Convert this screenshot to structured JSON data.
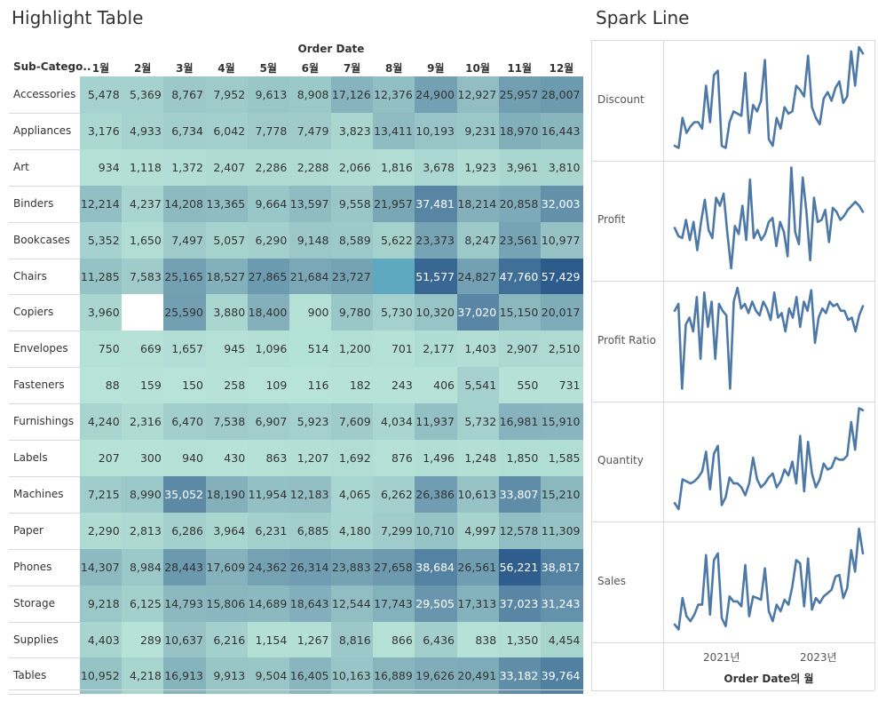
{
  "highlight": {
    "title": "Highlight Table",
    "column_group_label": "Order Date",
    "row_header": "Sub-Catego..",
    "months": [
      "1월",
      "2월",
      "3월",
      "4월",
      "5월",
      "6월",
      "7월",
      "8월",
      "9월",
      "10월",
      "11월",
      "12월"
    ],
    "colors": {
      "low": "#b8e4d8",
      "high": "#2c5b8c",
      "white_text_threshold": 29000
    }
  },
  "sparkline": {
    "title": "Spark Line",
    "measures": [
      "Discount",
      "Profit",
      "Profit Ratio",
      "Quantity",
      "Sales"
    ],
    "x_ticks": [
      "2021년",
      "2023년"
    ],
    "x_axis_title": "Order Date의 월",
    "line_color": "#4e79a7"
  },
  "chart_data": [
    {
      "type": "heatmap",
      "title": "Highlight Table",
      "xlabel": "Order Date",
      "ylabel": "Sub-Catego..",
      "columns": [
        "1월",
        "2월",
        "3월",
        "4월",
        "5월",
        "6월",
        "7월",
        "8월",
        "9월",
        "10월",
        "11월",
        "12월"
      ],
      "rows": [
        {
          "name": "Accessories",
          "values": [
            5478,
            5369,
            8767,
            7952,
            9613,
            8908,
            17126,
            12376,
            24900,
            12927,
            25957,
            28007
          ],
          "labels": [
            "5,478",
            "5,369",
            "8,767",
            "7,952",
            "9,613",
            "8,908",
            "17,126",
            "12,376",
            "24,900",
            "12,927",
            "25,957",
            "28,007"
          ]
        },
        {
          "name": "Appliances",
          "values": [
            3176,
            4933,
            6734,
            6042,
            7778,
            7479,
            3823,
            13411,
            10193,
            9231,
            18970,
            16443
          ],
          "labels": [
            "3,176",
            "4,933",
            "6,734",
            "6,042",
            "7,778",
            "7,479",
            "3,823",
            "13,411",
            "10,193",
            "9,231",
            "18,970",
            "16,443"
          ]
        },
        {
          "name": "Art",
          "values": [
            934,
            1118,
            1372,
            2407,
            2286,
            2288,
            2066,
            1816,
            3678,
            1923,
            3961,
            3810
          ],
          "labels": [
            "934",
            "1,118",
            "1,372",
            "2,407",
            "2,286",
            "2,288",
            "2,066",
            "1,816",
            "3,678",
            "1,923",
            "3,961",
            "3,810"
          ]
        },
        {
          "name": "Binders",
          "values": [
            12214,
            4237,
            14208,
            13365,
            9664,
            13597,
            9558,
            21957,
            37481,
            18214,
            20858,
            32003
          ],
          "labels": [
            "12,214",
            "4,237",
            "14,208",
            "13,365",
            "9,664",
            "13,597",
            "9,558",
            "21,957",
            "37,481",
            "18,214",
            "20,858",
            "32,003"
          ]
        },
        {
          "name": "Bookcases",
          "values": [
            5352,
            1650,
            7497,
            5057,
            6290,
            9148,
            8589,
            5622,
            23373,
            8247,
            23561,
            10977
          ],
          "labels": [
            "5,352",
            "1,650",
            "7,497",
            "5,057",
            "6,290",
            "9,148",
            "8,589",
            "5,622",
            "23,373",
            "8,247",
            "23,561",
            "10,977"
          ]
        },
        {
          "name": "Chairs",
          "values": [
            11285,
            7583,
            25165,
            18527,
            27865,
            21684,
            23727,
            null,
            51577,
            24827,
            47760,
            57429
          ],
          "labels": [
            "11,285",
            "7,583",
            "25,165",
            "18,527",
            "27,865",
            "21,684",
            "23,727",
            "",
            "51,577",
            "24,827",
            "47,760",
            "57,429"
          ],
          "fill_blank": [
            7
          ]
        },
        {
          "name": "Copiers",
          "values": [
            3960,
            null,
            25590,
            3880,
            18400,
            900,
            9780,
            5730,
            10320,
            37020,
            15150,
            20017
          ],
          "labels": [
            "3,960",
            "",
            "25,590",
            "3,880",
            "18,400",
            "900",
            "9,780",
            "5,730",
            "10,320",
            "37,020",
            "15,150",
            "20,017"
          ]
        },
        {
          "name": "Envelopes",
          "values": [
            750,
            669,
            1657,
            945,
            1096,
            514,
            1200,
            701,
            2177,
            1403,
            2907,
            2510
          ],
          "labels": [
            "750",
            "669",
            "1,657",
            "945",
            "1,096",
            "514",
            "1,200",
            "701",
            "2,177",
            "1,403",
            "2,907",
            "2,510"
          ]
        },
        {
          "name": "Fasteners",
          "values": [
            88,
            159,
            150,
            258,
            109,
            116,
            182,
            243,
            406,
            5541,
            550,
            731
          ],
          "labels": [
            "88",
            "159",
            "150",
            "258",
            "109",
            "116",
            "182",
            "243",
            "406",
            "5,541",
            "550",
            "731"
          ]
        },
        {
          "name": "Furnishings",
          "values": [
            4240,
            2316,
            6470,
            7538,
            6907,
            5923,
            7609,
            4034,
            11937,
            5732,
            16981,
            15910
          ],
          "labels": [
            "4,240",
            "2,316",
            "6,470",
            "7,538",
            "6,907",
            "5,923",
            "7,609",
            "4,034",
            "11,937",
            "5,732",
            "16,981",
            "15,910"
          ]
        },
        {
          "name": "Labels",
          "values": [
            207,
            300,
            940,
            430,
            863,
            1207,
            1692,
            876,
            1496,
            1248,
            1850,
            1585
          ],
          "labels": [
            "207",
            "300",
            "940",
            "430",
            "863",
            "1,207",
            "1,692",
            "876",
            "1,496",
            "1,248",
            "1,850",
            "1,585"
          ]
        },
        {
          "name": "Machines",
          "values": [
            7215,
            8990,
            35052,
            18190,
            11954,
            12183,
            4065,
            6262,
            26386,
            10613,
            33807,
            15210
          ],
          "labels": [
            "7,215",
            "8,990",
            "35,052",
            "18,190",
            "11,954",
            "12,183",
            "4,065",
            "6,262",
            "26,386",
            "10,613",
            "33,807",
            "15,210"
          ]
        },
        {
          "name": "Paper",
          "values": [
            2290,
            2813,
            6286,
            3964,
            6231,
            6885,
            4180,
            7299,
            10710,
            4997,
            12578,
            11309
          ],
          "labels": [
            "2,290",
            "2,813",
            "6,286",
            "3,964",
            "6,231",
            "6,885",
            "4,180",
            "7,299",
            "10,710",
            "4,997",
            "12,578",
            "11,309"
          ]
        },
        {
          "name": "Phones",
          "values": [
            14307,
            8984,
            28443,
            17609,
            24362,
            26314,
            23883,
            27658,
            38684,
            26561,
            56221,
            38817
          ],
          "labels": [
            "14,307",
            "8,984",
            "28,443",
            "17,609",
            "24,362",
            "26,314",
            "23,883",
            "27,658",
            "38,684",
            "26,561",
            "56,221",
            "38,817"
          ]
        },
        {
          "name": "Storage",
          "values": [
            9218,
            6125,
            14793,
            15806,
            14689,
            18643,
            12544,
            17743,
            29505,
            17313,
            37023,
            31243
          ],
          "labels": [
            "9,218",
            "6,125",
            "14,793",
            "15,806",
            "14,689",
            "18,643",
            "12,544",
            "17,743",
            "29,505",
            "17,313",
            "37,023",
            "31,243"
          ]
        },
        {
          "name": "Supplies",
          "values": [
            4403,
            289,
            10637,
            6216,
            1154,
            1267,
            8816,
            866,
            6436,
            838,
            1350,
            4454
          ],
          "labels": [
            "4,403",
            "289",
            "10,637",
            "6,216",
            "1,154",
            "1,267",
            "8,816",
            "866",
            "6,436",
            "838",
            "1,350",
            "4,454"
          ]
        },
        {
          "name": "Tables",
          "values": [
            10952,
            4218,
            16913,
            9913,
            9504,
            16405,
            10163,
            16889,
            19626,
            20491,
            33182,
            39764
          ],
          "labels": [
            "10,952",
            "4,218",
            "16,913",
            "9,913",
            "9,504",
            "16,405",
            "10,163",
            "16,889",
            "19,626",
            "20,491",
            "33,182",
            "39,764"
          ]
        }
      ]
    },
    {
      "type": "line",
      "title": "Spark Line",
      "xlabel": "Order Date의 월",
      "x_ticks": [
        "2021년",
        "2023년"
      ],
      "series": [
        {
          "name": "Discount",
          "values": [
            2,
            0,
            28,
            14,
            20,
            24,
            24,
            18,
            58,
            24,
            68,
            72,
            2,
            0,
            24,
            34,
            32,
            30,
            70,
            14,
            40,
            34,
            44,
            82,
            8,
            2,
            28,
            18,
            38,
            32,
            34,
            58,
            54,
            48,
            86,
            38,
            28,
            22,
            46,
            52,
            44,
            56,
            62,
            42,
            48,
            90,
            58,
            94,
            88
          ]
        },
        {
          "name": "Profit",
          "values": [
            46,
            38,
            36,
            54,
            34,
            52,
            24,
            52,
            74,
            44,
            36,
            76,
            68,
            80,
            40,
            6,
            48,
            40,
            68,
            34,
            94,
            36,
            44,
            34,
            40,
            52,
            56,
            28,
            52,
            42,
            18,
            106,
            42,
            30,
            96,
            62,
            14,
            76,
            52,
            54,
            64,
            32,
            66,
            62,
            54,
            58,
            64,
            68,
            72,
            68,
            62
          ]
        },
        {
          "name": "Profit Ratio",
          "values": [
            78,
            84,
            10,
            66,
            72,
            60,
            90,
            36,
            94,
            64,
            86,
            36,
            84,
            78,
            74,
            10,
            86,
            98,
            80,
            84,
            76,
            86,
            78,
            74,
            86,
            80,
            70,
            94,
            72,
            76,
            60,
            80,
            72,
            90,
            64,
            86,
            78,
            96,
            50,
            72,
            80,
            76,
            86,
            82,
            84,
            78,
            78,
            70,
            72,
            60,
            74,
            82
          ]
        },
        {
          "name": "Quantity",
          "values": [
            6,
            0,
            30,
            28,
            26,
            28,
            32,
            38,
            58,
            20,
            56,
            64,
            4,
            12,
            32,
            26,
            26,
            22,
            14,
            26,
            52,
            30,
            22,
            26,
            32,
            36,
            22,
            28,
            40,
            34,
            48,
            26,
            74,
            18,
            68,
            36,
            22,
            30,
            46,
            40,
            42,
            52,
            50,
            50,
            54,
            88,
            60,
            102,
            100
          ]
        },
        {
          "name": "Sales",
          "values": [
            6,
            0,
            38,
            16,
            10,
            18,
            30,
            30,
            90,
            18,
            84,
            92,
            14,
            4,
            40,
            34,
            34,
            28,
            78,
            16,
            40,
            38,
            36,
            74,
            22,
            10,
            30,
            22,
            36,
            30,
            52,
            84,
            80,
            28,
            86,
            24,
            38,
            32,
            40,
            44,
            48,
            64,
            66,
            38,
            50,
            96,
            70,
            122,
            92
          ]
        }
      ]
    }
  ]
}
